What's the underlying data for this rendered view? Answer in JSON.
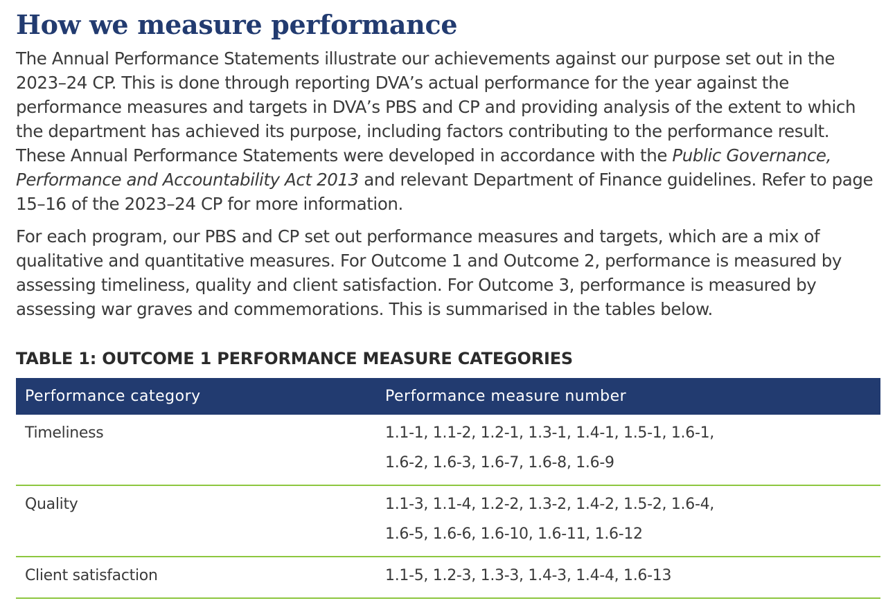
{
  "heading": "How we measure performance",
  "paragraph1": {
    "before_italic": "The Annual Performance Statements illustrate our achievements against our purpose set out in the 2023–24 CP. This is done through reporting DVA’s actual performance for the year against the performance measures and targets in DVA’s PBS and CP and providing analysis of the extent to which the department has achieved its purpose, including factors contributing to the performance result. These Annual Performance Statements were developed in accordance with the ",
    "italic": "Public Governance, Performance and Accountability Act 2013",
    "after_italic": " and relevant Department of Finance guidelines. Refer to page 15–16 of the 2023–24 CP for more information."
  },
  "paragraph2": "For each program, our PBS and CP set out performance measures and targets, which are a mix of qualitative and quantitative measures. For Outcome 1 and Outcome 2, performance is measured by assessing timeliness, quality and client satisfaction. For Outcome 3, performance is measured by assessing war graves and commemorations. This is summarised in the tables below.",
  "table": {
    "title": "TABLE 1: OUTCOME 1 PERFORMANCE MEASURE CATEGORIES",
    "headers": [
      "Performance category",
      "Performance measure number"
    ],
    "header_color": "#223b70",
    "row_divider_color": "#8dc63f",
    "rows": [
      {
        "category": "Timeliness",
        "measures": [
          "1.1-1, 1.1-2, 1.2-1, 1.3-1, 1.4-1, 1.5-1, 1.6-1,",
          "1.6-2, 1.6-3, 1.6-7, 1.6-8, 1.6-9"
        ]
      },
      {
        "category": "Quality",
        "measures": [
          "1.1-3, 1.1-4, 1.2-2, 1.3-2, 1.4-2, 1.5-2, 1.6-4,",
          "1.6-5, 1.6-6, 1.6-10, 1.6-11, 1.6-12"
        ]
      },
      {
        "category": "Client satisfaction",
        "measures": [
          "1.1-5, 1.2-3, 1.3-3, 1.4-3, 1.4-4, 1.6-13"
        ]
      }
    ]
  }
}
